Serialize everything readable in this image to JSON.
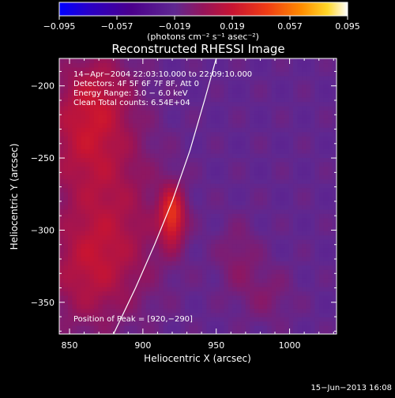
{
  "chart_data": {
    "type": "heatmap",
    "title": "Reconstructed RHESSI Image",
    "xlabel": "Heliocentric X (arcsec)",
    "ylabel": "Heliocentric Y (arcsec)",
    "xlim": [
      843,
      1032
    ],
    "ylim": [
      -372,
      -181
    ],
    "x_ticks": [
      {
        "value": 850,
        "label": "850"
      },
      {
        "value": 900,
        "label": "900"
      },
      {
        "value": 950,
        "label": "950"
      },
      {
        "value": 1000,
        "label": "1000"
      }
    ],
    "y_ticks": [
      {
        "value": -200,
        "label": "−200"
      },
      {
        "value": -250,
        "label": "−250"
      },
      {
        "value": -300,
        "label": "−300"
      },
      {
        "value": -350,
        "label": "−350"
      }
    ],
    "colorbar": {
      "range": [
        -0.095,
        0.095
      ],
      "ticks": [
        {
          "value": -0.095,
          "label": "−0.095"
        },
        {
          "value": -0.057,
          "label": "−0.057"
        },
        {
          "value": -0.019,
          "label": "−0.019"
        },
        {
          "value": 0.019,
          "label": "0.019"
        },
        {
          "value": 0.057,
          "label": "0.057"
        },
        {
          "value": 0.095,
          "label": "0.095"
        }
      ],
      "unit_label": "(photons cm⁻² s⁻¹ asec⁻²)"
    },
    "annotations": [
      "14−Apr−2004 22:03:10.000 to 22:09:10.000",
      "Detectors: 4F 5F 6F 7F 8F, Att 0",
      "Energy Range: 3.0 − 6.0 keV",
      "Clean     Total counts: 6.54E+04"
    ],
    "peak_label": "Position of Peak = [920,−290]",
    "peak": {
      "x": 920,
      "y": -290,
      "value": 0.095
    },
    "limb_curve": [
      [
        880,
        -372
      ],
      [
        895,
        -340
      ],
      [
        908,
        -310
      ],
      [
        920,
        -280
      ],
      [
        932,
        -245
      ],
      [
        942,
        -210
      ],
      [
        950,
        -181
      ]
    ],
    "sources": [
      {
        "x": 920,
        "y": -290,
        "sx": 6,
        "sy": 14,
        "amp": 0.05
      },
      {
        "x": 862,
        "y": -232,
        "sx": 22,
        "sy": 30,
        "amp": 0.03
      },
      {
        "x": 880,
        "y": -300,
        "sx": 25,
        "sy": 38,
        "amp": 0.022
      },
      {
        "x": 860,
        "y": -330,
        "sx": 20,
        "sy": 28,
        "amp": 0.02
      },
      {
        "x": 870,
        "y": -200,
        "sx": 16,
        "sy": 20,
        "amp": 0.015
      },
      {
        "x": 965,
        "y": -320,
        "sx": 10,
        "sy": 18,
        "amp": 0.012
      },
      {
        "x": 985,
        "y": -345,
        "sx": 12,
        "sy": 14,
        "amp": 0.01
      }
    ],
    "background": -0.018,
    "colors": {
      "lowest": "#0000ff",
      "low": "#3a0080",
      "mid_negative": "#5a2a8c",
      "mid": "#c21c3a",
      "high": "#ff7a00",
      "highest": "#ffffff"
    }
  },
  "footer": {
    "date": "15−Jun−2013 16:08"
  }
}
